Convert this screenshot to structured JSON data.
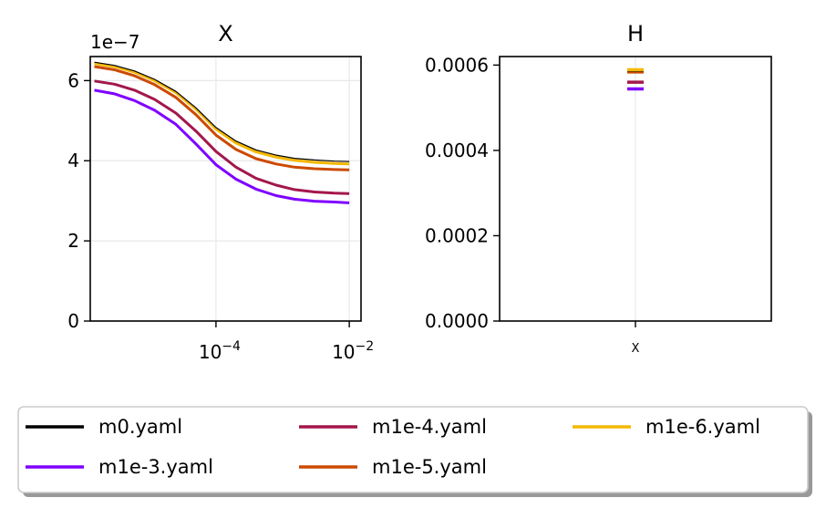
{
  "chart_data": [
    {
      "type": "line",
      "title": "X",
      "xscale": "log",
      "xlim": [
        1.3e-06,
        0.015
      ],
      "ylim": [
        0,
        6.6e-07
      ],
      "offset_text": "1e−7",
      "yticks": [
        {
          "value": 0,
          "label": "0"
        },
        {
          "value": 2e-07,
          "label": "2"
        },
        {
          "value": 4e-07,
          "label": "4"
        },
        {
          "value": 6e-07,
          "label": "6"
        }
      ],
      "xticks": [
        {
          "value": 0.0001,
          "base": "10",
          "exp": "−4"
        },
        {
          "value": 0.01,
          "base": "10",
          "exp": "−2"
        }
      ],
      "grid": true,
      "x": [
        1.5e-06,
        3e-06,
        6e-06,
        1.2e-05,
        2.5e-05,
        5e-05,
        0.0001,
        0.0002,
        0.0004,
        0.0008,
        0.0015,
        0.003,
        0.006,
        0.01
      ],
      "series": [
        {
          "name": "m0.yaml",
          "color": "#000000",
          "values": [
            6.46e-07,
            6.38e-07,
            6.24e-07,
            6.03e-07,
            5.73e-07,
            5.32e-07,
            4.83e-07,
            4.49e-07,
            4.27e-07,
            4.14e-07,
            4.06e-07,
            4.02e-07,
            3.99e-07,
            3.98e-07
          ]
        },
        {
          "name": "m1e-3.yaml",
          "color": "#7f00ff",
          "values": [
            5.76e-07,
            5.67e-07,
            5.5e-07,
            5.26e-07,
            4.91e-07,
            4.42e-07,
            3.9e-07,
            3.54e-07,
            3.29e-07,
            3.13e-07,
            3.04e-07,
            2.99e-07,
            2.97e-07,
            2.95e-07
          ]
        },
        {
          "name": "m1e-4.yaml",
          "color": "#a3174b",
          "values": [
            5.99e-07,
            5.91e-07,
            5.76e-07,
            5.53e-07,
            5.19e-07,
            4.74e-07,
            4.23e-07,
            3.84e-07,
            3.56e-07,
            3.39e-07,
            3.28e-07,
            3.22e-07,
            3.19e-07,
            3.18e-07
          ]
        },
        {
          "name": "m1e-5.yaml",
          "color": "#cc4a00",
          "values": [
            6.35e-07,
            6.27e-07,
            6.12e-07,
            5.9e-07,
            5.58e-07,
            5.15e-07,
            4.64e-07,
            4.28e-07,
            4.05e-07,
            3.92e-07,
            3.84e-07,
            3.8e-07,
            3.78e-07,
            3.77e-07
          ]
        },
        {
          "name": "m1e-6.yaml",
          "color": "#f5b800",
          "values": [
            6.43e-07,
            6.35e-07,
            6.21e-07,
            6e-07,
            5.7e-07,
            5.29e-07,
            4.79e-07,
            4.44e-07,
            4.22e-07,
            4.09e-07,
            4.01e-07,
            3.96e-07,
            3.93e-07,
            3.92e-07
          ]
        }
      ]
    },
    {
      "type": "scatter",
      "title": "H",
      "categories": [
        "X"
      ],
      "ylim": [
        0,
        0.00062
      ],
      "yticks": [
        {
          "value": 0,
          "label": "0.0000"
        },
        {
          "value": 0.0002,
          "label": "0.0002"
        },
        {
          "value": 0.0004,
          "label": "0.0004"
        },
        {
          "value": 0.0006,
          "label": "0.0006"
        }
      ],
      "grid": true,
      "marker": "horizontal-dash",
      "series": [
        {
          "name": "m0.yaml",
          "color": "#000000",
          "values": [
            0.000588
          ]
        },
        {
          "name": "m1e-3.yaml",
          "color": "#7f00ff",
          "values": [
            0.000544
          ]
        },
        {
          "name": "m1e-4.yaml",
          "color": "#a3174b",
          "values": [
            0.00056
          ]
        },
        {
          "name": "m1e-5.yaml",
          "color": "#cc4a00",
          "values": [
            0.000584
          ]
        },
        {
          "name": "m1e-6.yaml",
          "color": "#f5b800",
          "values": [
            0.000589
          ]
        }
      ]
    }
  ],
  "legend": {
    "placement": "bottom",
    "columns": 3,
    "entries": [
      {
        "label": "m0.yaml",
        "color": "#000000"
      },
      {
        "label": "m1e-3.yaml",
        "color": "#7f00ff"
      },
      {
        "label": "m1e-4.yaml",
        "color": "#a3174b"
      },
      {
        "label": "m1e-5.yaml",
        "color": "#cc4a00"
      },
      {
        "label": "m1e-6.yaml",
        "color": "#f5b800"
      }
    ]
  }
}
